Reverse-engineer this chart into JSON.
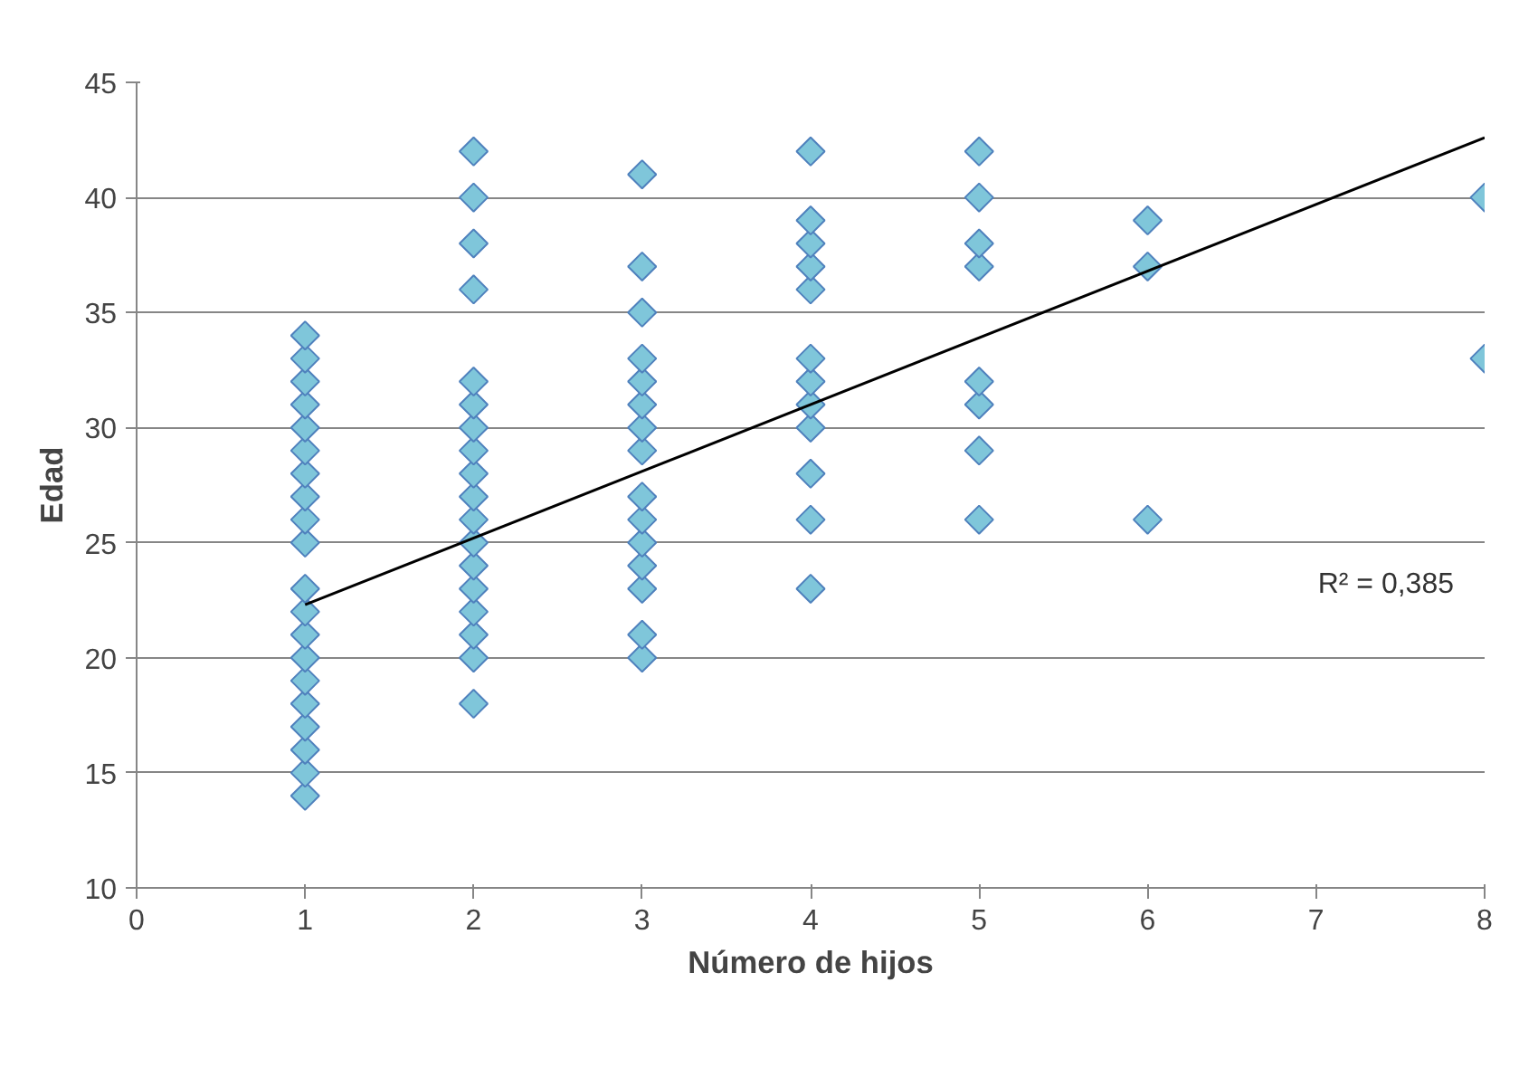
{
  "chart_data": {
    "type": "scatter",
    "xlabel": "Número de hijos",
    "ylabel": "Edad",
    "xlim": [
      0,
      8
    ],
    "xticks": [
      0,
      1,
      2,
      3,
      4,
      5,
      6,
      7,
      8
    ],
    "ylim": [
      10,
      45
    ],
    "yticks": [
      10,
      15,
      20,
      25,
      30,
      35,
      40,
      45
    ],
    "grid": "y",
    "annotations": [
      "R² = 0,385"
    ],
    "series": [
      {
        "color": "#7fc6da",
        "marker": "diamond",
        "x": [
          1,
          1,
          1,
          1,
          1,
          1,
          1,
          1,
          1,
          1,
          1,
          1,
          1,
          1,
          1,
          1,
          1,
          1,
          1,
          1,
          2,
          2,
          2,
          2,
          2,
          2,
          2,
          2,
          2,
          2,
          2,
          2,
          2,
          2,
          2,
          2,
          2,
          2,
          3,
          3,
          3,
          3,
          3,
          3,
          3,
          3,
          3,
          3,
          3,
          3,
          3,
          3,
          3,
          4,
          4,
          4,
          4,
          4,
          4,
          4,
          4,
          4,
          4,
          4,
          4,
          5,
          5,
          5,
          5,
          5,
          5,
          5,
          5,
          6,
          6,
          6,
          8,
          8
        ],
        "values": [
          14,
          15,
          16,
          17,
          18,
          19,
          20,
          21,
          22,
          23,
          25,
          26,
          27,
          28,
          29,
          30,
          31,
          32,
          33,
          34,
          18,
          20,
          21,
          22,
          23,
          24,
          25,
          26,
          27,
          28,
          29,
          30,
          31,
          32,
          36,
          38,
          40,
          42,
          20,
          21,
          23,
          24,
          25,
          26,
          27,
          29,
          30,
          31,
          32,
          33,
          35,
          37,
          41,
          23,
          26,
          28,
          30,
          31,
          32,
          33,
          36,
          37,
          38,
          39,
          42,
          26,
          29,
          31,
          32,
          37,
          38,
          40,
          42,
          26,
          37,
          39,
          33,
          40
        ]
      },
      {
        "type": "line",
        "color": "#000000",
        "x": [
          1,
          8
        ],
        "values": [
          22.3,
          42.6
        ]
      }
    ]
  }
}
